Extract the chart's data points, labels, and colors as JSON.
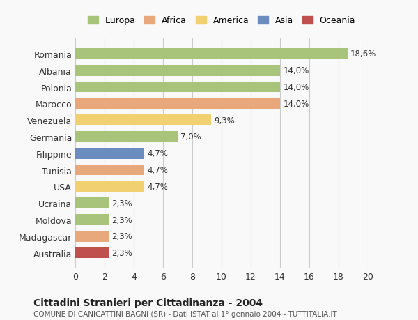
{
  "countries": [
    "Romania",
    "Albania",
    "Polonia",
    "Marocco",
    "Venezuela",
    "Germania",
    "Filippine",
    "Tunisia",
    "USA",
    "Ucraina",
    "Moldova",
    "Madagascar",
    "Australia"
  ],
  "values": [
    18.6,
    14.0,
    14.0,
    14.0,
    9.3,
    7.0,
    4.7,
    4.7,
    4.7,
    2.3,
    2.3,
    2.3,
    2.3
  ],
  "labels": [
    "18,6%",
    "14,0%",
    "14,0%",
    "14,0%",
    "9,3%",
    "7,0%",
    "4,7%",
    "4,7%",
    "4,7%",
    "2,3%",
    "2,3%",
    "2,3%",
    "2,3%"
  ],
  "colors": [
    "#a8c47a",
    "#a8c47a",
    "#a8c47a",
    "#e8a87c",
    "#f0d070",
    "#a8c47a",
    "#6b8cbf",
    "#e8a87c",
    "#f0d070",
    "#a8c47a",
    "#a8c47a",
    "#e8a87c",
    "#c0504d"
  ],
  "legend_labels": [
    "Europa",
    "Africa",
    "America",
    "Asia",
    "Oceania"
  ],
  "legend_colors": [
    "#a8c47a",
    "#e8a87c",
    "#f0d070",
    "#6b8cbf",
    "#c0504d"
  ],
  "title": "Cittadini Stranieri per Cittadinanza - 2004",
  "subtitle": "COMUNE DI CANICATTINI BAGNI (SR) - Dati ISTAT al 1° gennaio 2004 - TUTTITALIA.IT",
  "xlim": [
    0,
    20
  ],
  "xticks": [
    0,
    2,
    4,
    6,
    8,
    10,
    12,
    14,
    16,
    18,
    20
  ],
  "background_color": "#f9f9f9",
  "grid_color": "#cccccc"
}
